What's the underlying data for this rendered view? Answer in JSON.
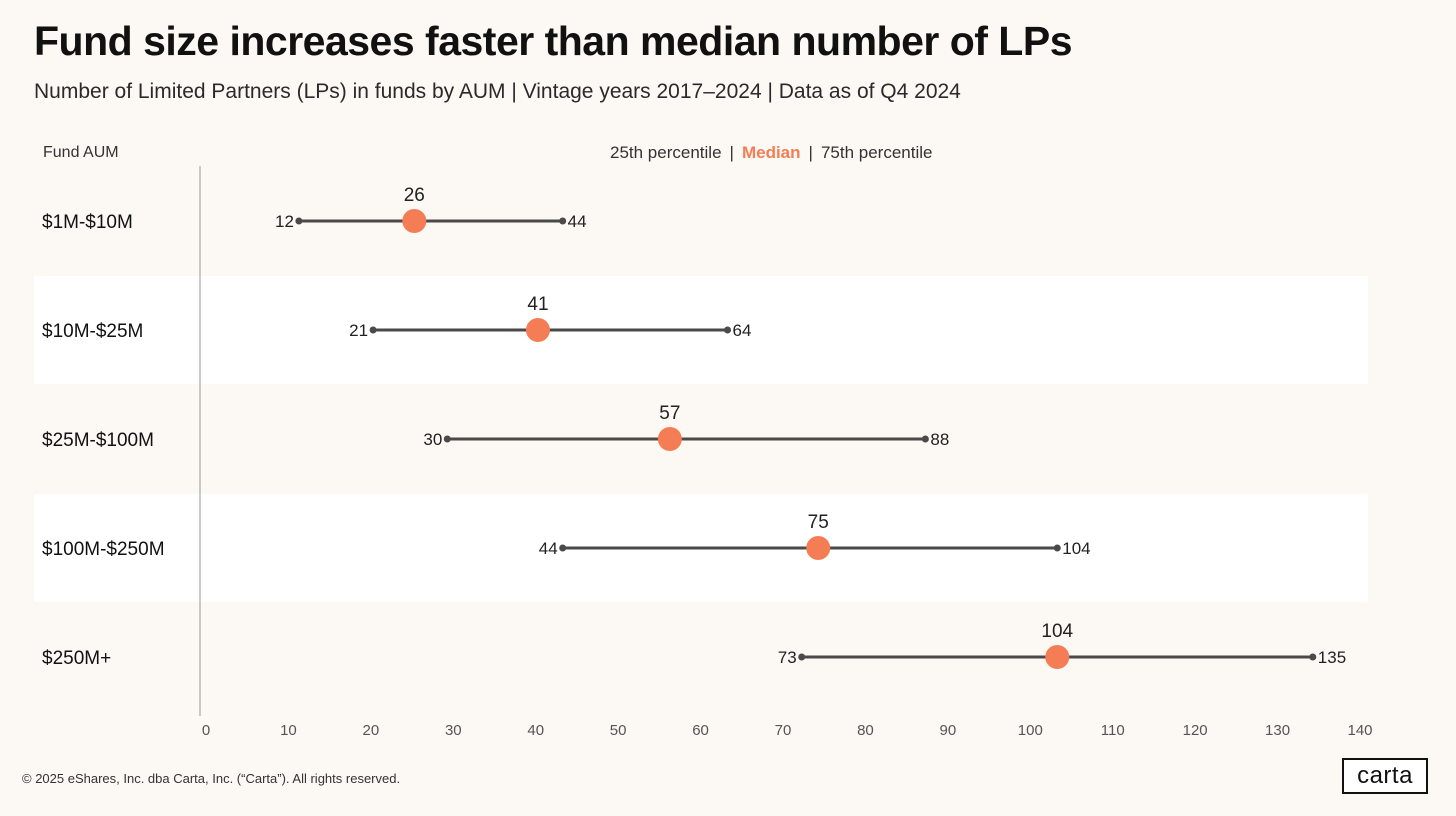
{
  "title": "Fund size increases faster than median number of LPs",
  "subtitle": "Number of Limited Partners (LPs) in funds by AUM | Vintage years 2017–2024 | Data as of Q4 2024",
  "axis_header": "Fund AUM",
  "legend": {
    "p25": "25th percentile",
    "separator": "|",
    "median": "Median",
    "p75": "75th percentile"
  },
  "footer": "© 2025 eShares, Inc. dba Carta, Inc. (“Carta”). All rights reserved.",
  "logo": "carta",
  "colors": {
    "median": "#f57d55",
    "range_line": "#4a4a4a",
    "band": "#ffffff",
    "background": "#fcf8f3"
  },
  "chart_data": {
    "type": "dot_range",
    "title": "Fund size increases faster than median number of LPs",
    "xlabel": "",
    "ylabel": "Fund AUM",
    "xlim": [
      0,
      140
    ],
    "xticks": [
      0,
      10,
      20,
      30,
      40,
      50,
      60,
      70,
      80,
      90,
      100,
      110,
      120,
      130,
      140
    ],
    "categories": [
      "$1M-$10M",
      "$10M-$25M",
      "$25M-$100M",
      "$100M-$250M",
      "$250M+"
    ],
    "series": [
      {
        "name": "25th percentile",
        "values": [
          12,
          21,
          30,
          44,
          73
        ]
      },
      {
        "name": "Median",
        "values": [
          26,
          41,
          57,
          75,
          104
        ]
      },
      {
        "name": "75th percentile",
        "values": [
          44,
          64,
          88,
          104,
          135
        ]
      }
    ]
  }
}
